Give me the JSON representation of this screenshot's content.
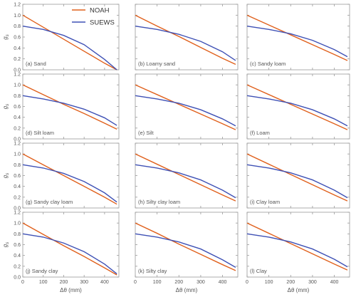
{
  "figure": {
    "legend": {
      "placement": "top-left panel, upper right",
      "entries": [
        {
          "name": "NOAH",
          "color": "#e0601c"
        },
        {
          "name": "SUEWS",
          "color": "#3f51b5"
        }
      ]
    },
    "ylabel_text": "g",
    "ylabel_sub": "s",
    "xlabel": "Δθ (mm)"
  },
  "chart_data": [
    {
      "type": "line",
      "title": "(a) Sand",
      "x": [
        0,
        100,
        200,
        300,
        400,
        460
      ],
      "ylim": [
        0,
        1.2
      ],
      "xlim": [
        0,
        470
      ],
      "grid": false,
      "series": [
        {
          "name": "NOAH",
          "values": [
            1.0,
            0.78,
            0.56,
            0.34,
            0.12,
            0.0
          ]
        },
        {
          "name": "SUEWS",
          "values": [
            0.8,
            0.74,
            0.63,
            0.46,
            0.19,
            0.0
          ]
        }
      ]
    },
    {
      "type": "line",
      "title": "(b) Loamy sand",
      "x": [
        0,
        100,
        200,
        300,
        400,
        460
      ],
      "ylim": [
        0,
        1.2
      ],
      "xlim": [
        0,
        470
      ],
      "grid": false,
      "series": [
        {
          "name": "NOAH",
          "values": [
            1.0,
            0.8,
            0.61,
            0.41,
            0.21,
            0.1
          ]
        },
        {
          "name": "SUEWS",
          "values": [
            0.8,
            0.74,
            0.65,
            0.52,
            0.33,
            0.17
          ]
        }
      ]
    },
    {
      "type": "line",
      "title": "(c) Sandy loam",
      "x": [
        0,
        100,
        200,
        300,
        400,
        460
      ],
      "ylim": [
        0,
        1.2
      ],
      "xlim": [
        0,
        470
      ],
      "grid": false,
      "series": [
        {
          "name": "NOAH",
          "values": [
            1.0,
            0.82,
            0.64,
            0.46,
            0.28,
            0.17
          ]
        },
        {
          "name": "SUEWS",
          "values": [
            0.8,
            0.74,
            0.66,
            0.54,
            0.37,
            0.24
          ]
        }
      ]
    },
    {
      "type": "line",
      "title": "(d) Silt loam",
      "x": [
        0,
        100,
        200,
        300,
        400,
        460
      ],
      "ylim": [
        0,
        1.2
      ],
      "xlim": [
        0,
        470
      ],
      "grid": false,
      "series": [
        {
          "name": "NOAH",
          "values": [
            1.0,
            0.82,
            0.64,
            0.47,
            0.29,
            0.18
          ]
        },
        {
          "name": "SUEWS",
          "values": [
            0.8,
            0.74,
            0.66,
            0.55,
            0.39,
            0.25
          ]
        }
      ]
    },
    {
      "type": "line",
      "title": "(e) Silt",
      "x": [
        0,
        100,
        200,
        300,
        400,
        460
      ],
      "ylim": [
        0,
        1.2
      ],
      "xlim": [
        0,
        470
      ],
      "grid": false,
      "series": [
        {
          "name": "NOAH",
          "values": [
            1.0,
            0.82,
            0.64,
            0.46,
            0.28,
            0.17
          ]
        },
        {
          "name": "SUEWS",
          "values": [
            0.8,
            0.74,
            0.66,
            0.54,
            0.37,
            0.24
          ]
        }
      ]
    },
    {
      "type": "line",
      "title": "(f) Loam",
      "x": [
        0,
        100,
        200,
        300,
        400,
        460
      ],
      "ylim": [
        0,
        1.2
      ],
      "xlim": [
        0,
        470
      ],
      "grid": false,
      "series": [
        {
          "name": "NOAH",
          "values": [
            1.0,
            0.82,
            0.64,
            0.46,
            0.28,
            0.17
          ]
        },
        {
          "name": "SUEWS",
          "values": [
            0.8,
            0.74,
            0.66,
            0.54,
            0.37,
            0.24
          ]
        }
      ]
    },
    {
      "type": "line",
      "title": "(g) Sandy clay loam",
      "x": [
        0,
        100,
        200,
        300,
        400,
        460
      ],
      "ylim": [
        0,
        1.2
      ],
      "xlim": [
        0,
        470
      ],
      "grid": false,
      "series": [
        {
          "name": "NOAH",
          "values": [
            1.0,
            0.8,
            0.6,
            0.4,
            0.2,
            0.07
          ]
        },
        {
          "name": "SUEWS",
          "values": [
            0.8,
            0.74,
            0.64,
            0.49,
            0.28,
            0.11
          ]
        }
      ]
    },
    {
      "type": "line",
      "title": "(h) Silty clay loam",
      "x": [
        0,
        100,
        200,
        300,
        400,
        460
      ],
      "ylim": [
        0,
        1.2
      ],
      "xlim": [
        0,
        470
      ],
      "grid": false,
      "series": [
        {
          "name": "NOAH",
          "values": [
            1.0,
            0.81,
            0.62,
            0.43,
            0.24,
            0.13
          ]
        },
        {
          "name": "SUEWS",
          "values": [
            0.8,
            0.74,
            0.65,
            0.52,
            0.33,
            0.19
          ]
        }
      ]
    },
    {
      "type": "line",
      "title": "(i) Clay loam",
      "x": [
        0,
        100,
        200,
        300,
        400,
        460
      ],
      "ylim": [
        0,
        1.2
      ],
      "xlim": [
        0,
        470
      ],
      "grid": false,
      "series": [
        {
          "name": "NOAH",
          "values": [
            1.0,
            0.81,
            0.62,
            0.43,
            0.24,
            0.13
          ]
        },
        {
          "name": "SUEWS",
          "values": [
            0.8,
            0.74,
            0.65,
            0.52,
            0.33,
            0.19
          ]
        }
      ]
    },
    {
      "type": "line",
      "title": "(j) Sandy clay",
      "x": [
        0,
        100,
        200,
        300,
        400,
        460
      ],
      "ylim": [
        0,
        1.2
      ],
      "xlim": [
        0,
        470
      ],
      "grid": false,
      "series": [
        {
          "name": "NOAH",
          "values": [
            1.0,
            0.79,
            0.58,
            0.38,
            0.17,
            0.04
          ]
        },
        {
          "name": "SUEWS",
          "values": [
            0.8,
            0.74,
            0.63,
            0.47,
            0.24,
            0.06
          ]
        }
      ]
    },
    {
      "type": "line",
      "title": "(k) Silty clay",
      "x": [
        0,
        100,
        200,
        300,
        400,
        460
      ],
      "ylim": [
        0,
        1.2
      ],
      "xlim": [
        0,
        470
      ],
      "grid": false,
      "series": [
        {
          "name": "NOAH",
          "values": [
            1.0,
            0.81,
            0.61,
            0.42,
            0.23,
            0.12
          ]
        },
        {
          "name": "SUEWS",
          "values": [
            0.8,
            0.74,
            0.65,
            0.52,
            0.32,
            0.18
          ]
        }
      ]
    },
    {
      "type": "line",
      "title": "(l) Clay",
      "x": [
        0,
        100,
        200,
        300,
        400,
        460
      ],
      "ylim": [
        0,
        1.2
      ],
      "xlim": [
        0,
        470
      ],
      "grid": false,
      "series": [
        {
          "name": "NOAH",
          "values": [
            1.0,
            0.81,
            0.62,
            0.43,
            0.24,
            0.13
          ]
        },
        {
          "name": "SUEWS",
          "values": [
            0.8,
            0.74,
            0.65,
            0.52,
            0.33,
            0.19
          ]
        }
      ]
    }
  ]
}
